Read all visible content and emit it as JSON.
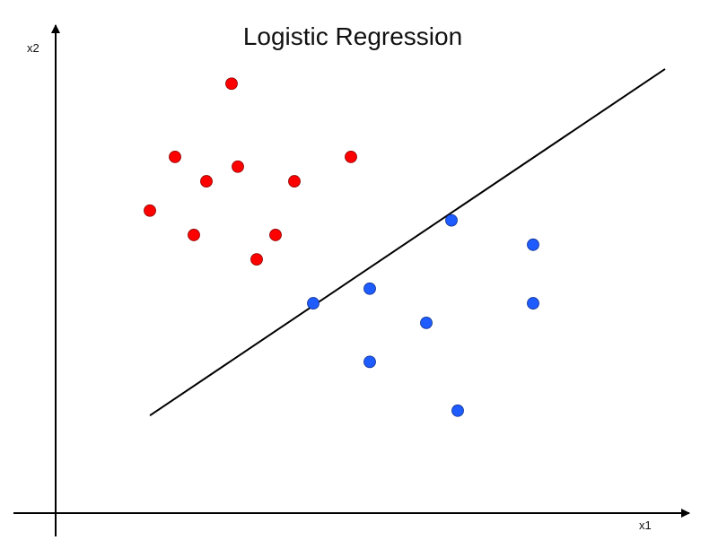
{
  "chart_data": {
    "type": "scatter",
    "title": "Logistic Regression",
    "xlabel": "x1",
    "ylabel": "x2",
    "xlim": [
      0,
      100
    ],
    "ylim": [
      0,
      100
    ],
    "grid": false,
    "colors": {
      "class_a": "#ff0000",
      "class_b": "#1f5cff",
      "axis": "#000000",
      "line": "#000000"
    },
    "series": [
      {
        "color": "#ff0000",
        "points": [
          {
            "x": 28,
            "y": 88
          },
          {
            "x": 19,
            "y": 73
          },
          {
            "x": 24,
            "y": 68
          },
          {
            "x": 29,
            "y": 71
          },
          {
            "x": 38,
            "y": 68
          },
          {
            "x": 47,
            "y": 73
          },
          {
            "x": 15,
            "y": 62
          },
          {
            "x": 22,
            "y": 57
          },
          {
            "x": 35,
            "y": 57
          },
          {
            "x": 32,
            "y": 52
          }
        ]
      },
      {
        "color": "#1f5cff",
        "points": [
          {
            "x": 41,
            "y": 43
          },
          {
            "x": 50,
            "y": 46
          },
          {
            "x": 59,
            "y": 39
          },
          {
            "x": 50,
            "y": 31
          },
          {
            "x": 64,
            "y": 21
          },
          {
            "x": 63,
            "y": 60
          },
          {
            "x": 76,
            "y": 55
          },
          {
            "x": 76,
            "y": 43
          }
        ]
      }
    ],
    "decision_boundary": {
      "x": [
        15,
        97
      ],
      "y": [
        20,
        91
      ]
    }
  }
}
